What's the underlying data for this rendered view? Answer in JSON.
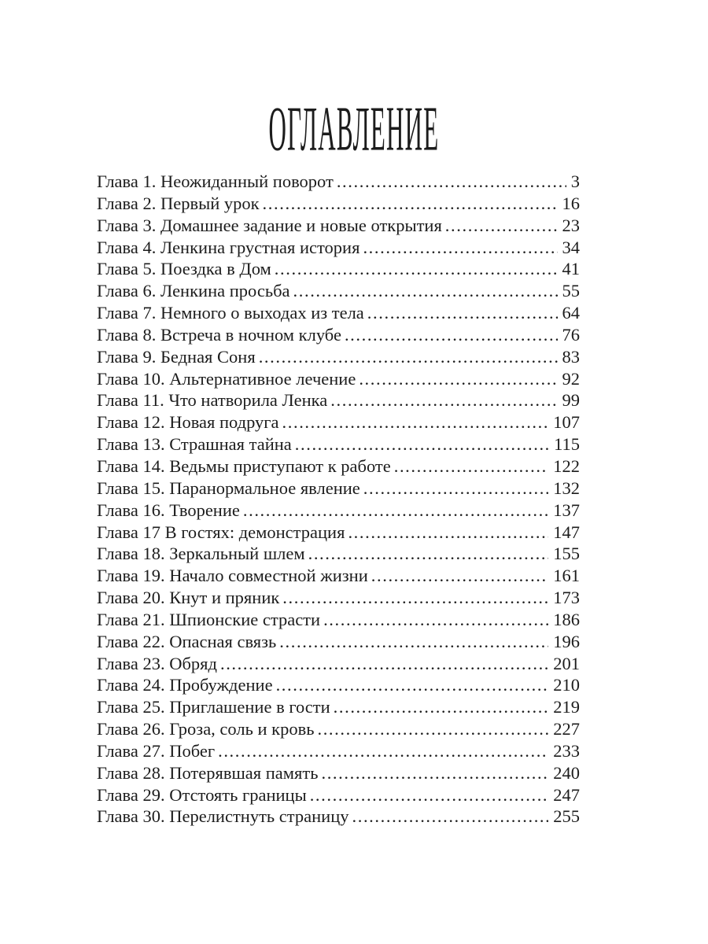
{
  "colors": {
    "background": "#ffffff",
    "text": "#1c1c1c"
  },
  "title": {
    "text": "Оглавление"
  },
  "toc": {
    "leader_char": ".",
    "entries": [
      {
        "label": "Глава 1. Неожиданный поворот",
        "page": "3"
      },
      {
        "label": "Глава 2. Первый урок",
        "page": "16"
      },
      {
        "label": "Глава 3. Домашнее задание и новые открытия",
        "page": "23"
      },
      {
        "label": "Глава 4. Ленкина грустная история",
        "page": "34"
      },
      {
        "label": "Глава 5. Поездка в Дом",
        "page": "41"
      },
      {
        "label": "Глава 6. Ленкина просьба",
        "page": "55"
      },
      {
        "label": "Глава 7. Немного о выходах из тела",
        "page": "64"
      },
      {
        "label": "Глава 8. Встреча в ночном клубе",
        "page": "76"
      },
      {
        "label": "Глава 9. Бедная Соня",
        "page": "83"
      },
      {
        "label": "Глава 10. Альтернативное лечение",
        "page": "92"
      },
      {
        "label": "Глава 11. Что натворила Ленка",
        "page": "99"
      },
      {
        "label": "Глава 12. Новая подруга",
        "page": "107"
      },
      {
        "label": "Глава 13. Страшная тайна",
        "page": "115"
      },
      {
        "label": "Глава 14. Ведьмы приступают к работе",
        "page": "122"
      },
      {
        "label": "Глава 15. Паранормальное явление",
        "page": "132"
      },
      {
        "label": "Глава 16. Творение",
        "page": "137"
      },
      {
        "label": "Глава 17 В гостях: демонстрация",
        "page": "147"
      },
      {
        "label": "Глава 18. Зеркальный шлем",
        "page": "155"
      },
      {
        "label": "Глава 19. Начало совместной жизни",
        "page": "161"
      },
      {
        "label": "Глава 20. Кнут и пряник",
        "page": "173"
      },
      {
        "label": "Глава 21. Шпионские страсти",
        "page": "186"
      },
      {
        "label": "Глава 22. Опасная связь",
        "page": "196"
      },
      {
        "label": "Глава 23. Обряд",
        "page": "201"
      },
      {
        "label": "Глава 24. Пробуждение",
        "page": "210"
      },
      {
        "label": "Глава 25. Приглашение в гости",
        "page": "219"
      },
      {
        "label": "Глава 26. Гроза, соль и кровь",
        "page": "227"
      },
      {
        "label": "Глава 27. Побег",
        "page": "233"
      },
      {
        "label": "Глава 28. Потерявшая память",
        "page": "240"
      },
      {
        "label": "Глава 29. Отстоять границы",
        "page": "247"
      },
      {
        "label": "Глава 30. Перелистнуть страницу",
        "page": "255"
      }
    ]
  }
}
